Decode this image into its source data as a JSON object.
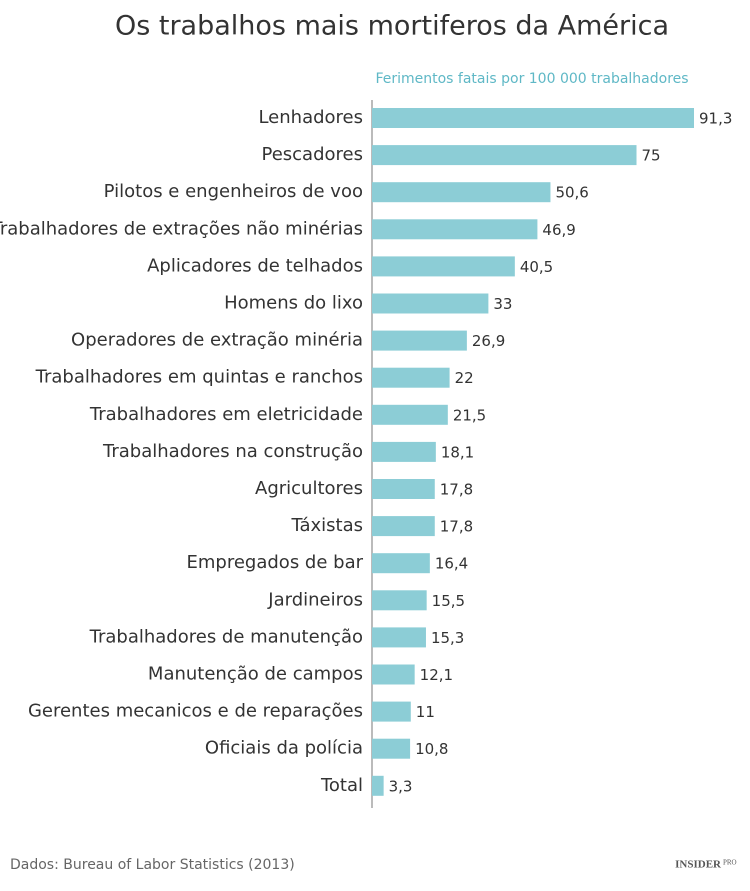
{
  "chart_data": {
    "type": "hbar",
    "title": "Os trabalhos mais mortiferos da América",
    "x_label": "Ferimentos fatais por 100 000 trabalhadores",
    "categories": [
      "Lenhadores",
      "Pescadores",
      "Pilotos e engenheiros de voo",
      "Trabalhadores de extrações não minérias",
      "Aplicadores de telhados",
      "Homens do lixo",
      "Operadores de extração minéria",
      "Trabalhadores em quintas e ranchos",
      "Trabalhadores em eletricidade",
      "Trabalhadores na construção",
      "Agricultores",
      "Táxistas",
      "Empregados de bar",
      "Jardineiros",
      "Trabalhadores de manutenção",
      "Manutenção de campos",
      "Gerentes mecanicos e de reparações",
      "Oficiais da polícia",
      "Total"
    ],
    "values": [
      91.3,
      75,
      50.6,
      46.9,
      40.5,
      33,
      26.9,
      22,
      21.5,
      18.1,
      17.8,
      17.8,
      16.4,
      15.5,
      15.3,
      12.1,
      11,
      10.8,
      3.3
    ],
    "value_labels": [
      "91,3",
      "75",
      "50,6",
      "46,9",
      "40,5",
      "33",
      "26,9",
      "22",
      "21,5",
      "18,1",
      "17,8",
      "17,8",
      "16,4",
      "15,5",
      "15,3",
      "12,1",
      "11",
      "10,8",
      "3,3"
    ],
    "color": "#8ccdd6",
    "xlim": [
      0,
      91.3
    ]
  },
  "footer": {
    "source": "Dados: Bureau of Labor Statistics (2013)",
    "brand": "INSIDER",
    "brand_suffix": "PRO"
  }
}
